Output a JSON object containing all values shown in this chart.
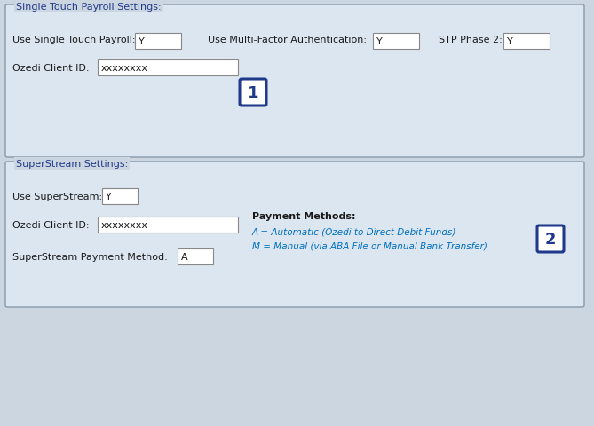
{
  "bg_color": "#ccd6e0",
  "panel_color": "#dce6f0",
  "box_color": "#ffffff",
  "blue_color": "#1f3a8a",
  "label_color": "#1a1a1a",
  "link_color": "#0070c0",
  "section1_title": "Single Touch Payroll Settings:",
  "section2_title": "SuperStream Settings:",
  "payment_methods_title": "Payment Methods:",
  "payment_method_a": "A = Automatic (Ozedi to Direct Debit Funds)",
  "payment_method_m": "M = Manual (via ABA File or Manual Bank Transfer)",
  "figw": 6.69,
  "figh": 4.81,
  "dpi": 100
}
